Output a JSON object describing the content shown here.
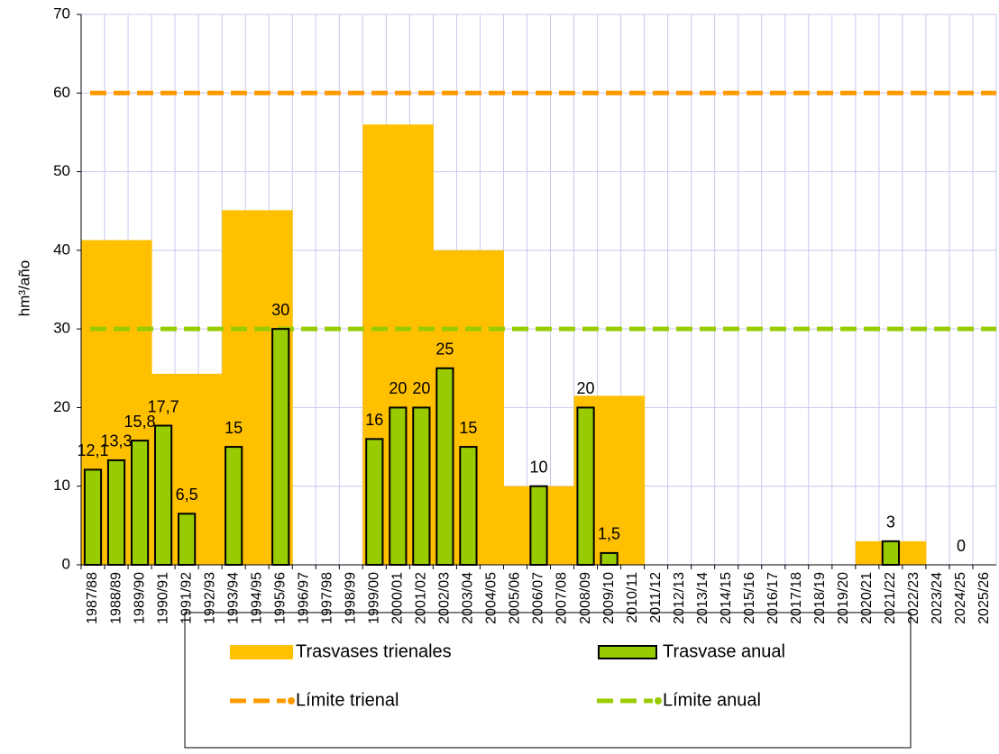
{
  "chart_data": {
    "type": "bar",
    "y_label": "hm³/año",
    "categories": [
      "1987/88",
      "1988/89",
      "1989/90",
      "1990/91",
      "1991/92",
      "1992/93",
      "1993/94",
      "1994/95",
      "1995/96",
      "1996/97",
      "1997/98",
      "1998/99",
      "1999/00",
      "2000/01",
      "2001/02",
      "2002/03",
      "2003/04",
      "2004/05",
      "2005/06",
      "2006/07",
      "2007/08",
      "2008/09",
      "2009/10",
      "2010/11",
      "2011/12",
      "2012/13",
      "2013/14",
      "2014/15",
      "2015/16",
      "2016/17",
      "2017/18",
      "2018/19",
      "2019/20",
      "2020/21",
      "2021/22",
      "2022/23",
      "2023/24",
      "2024/25",
      "2025/26"
    ],
    "series": [
      {
        "name": "Trasvases trienales",
        "type": "area",
        "color": "#ffc000",
        "values": [
          41.3,
          41.3,
          41.3,
          24.3,
          24.3,
          24.3,
          45.1,
          45.1,
          45.1,
          0,
          0,
          0,
          56,
          56,
          56,
          40,
          40,
          40,
          10,
          10,
          10,
          21.5,
          21.5,
          21.5,
          0,
          0,
          0,
          0,
          0,
          0,
          0,
          0,
          0,
          3,
          3,
          3,
          0,
          0,
          0
        ]
      },
      {
        "name": "Trasvase anual",
        "type": "bar",
        "color": "#99cc00",
        "values": [
          12.1,
          13.3,
          15.8,
          17.7,
          6.5,
          null,
          15,
          null,
          30,
          null,
          null,
          null,
          16,
          20,
          20,
          25,
          15,
          null,
          null,
          10,
          null,
          20,
          1.5,
          null,
          null,
          null,
          null,
          null,
          null,
          null,
          null,
          null,
          null,
          null,
          3,
          null,
          null,
          0,
          null
        ],
        "value_labels": [
          "12,1",
          "13,3",
          "15,8",
          "17,7",
          "6,5",
          null,
          "15",
          null,
          "30",
          null,
          null,
          null,
          "16",
          "20",
          "20",
          "25",
          "15",
          null,
          null,
          "10",
          null,
          "20",
          "1,5",
          null,
          null,
          null,
          null,
          null,
          null,
          null,
          null,
          null,
          null,
          null,
          "3",
          null,
          null,
          "0",
          null
        ]
      }
    ],
    "reference_lines": [
      {
        "name": "Límite trienal",
        "color": "#ff9900",
        "value": 60
      },
      {
        "name": "Límite anual",
        "color": "#99cc00",
        "value": 30
      }
    ],
    "ylim": [
      0,
      70
    ],
    "yticks": [
      0,
      10,
      20,
      30,
      40,
      50,
      60,
      70
    ],
    "grid": true
  }
}
